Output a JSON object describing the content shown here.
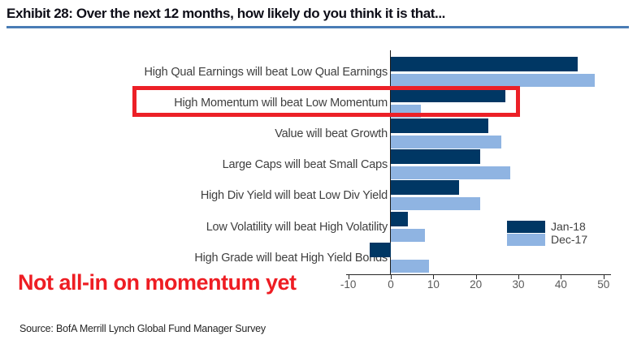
{
  "header": {
    "title": "Exhibit 28: Over the next 12 months, how likely do you think it is that..."
  },
  "chart_data": {
    "type": "bar",
    "orientation": "horizontal",
    "title": "Exhibit 28: Over the next 12 months, how likely do you think it is that...",
    "categories": [
      "High Qual Earnings will beat Low Qual Earnings",
      "High Momentum will beat Low Momentum",
      "Value will beat Growth",
      "Large Caps will beat Small Caps",
      "High Div Yield will beat Low Div Yield",
      "Low Volatility will beat High Volatility",
      "High Grade will beat High Yield Bonds"
    ],
    "series": [
      {
        "name": "Jan-18",
        "color": "#003764",
        "values": [
          44,
          27,
          23,
          21,
          16,
          4,
          -5
        ]
      },
      {
        "name": "Dec-17",
        "color": "#8fb4e2",
        "values": [
          48,
          7,
          26,
          28,
          21,
          8,
          9
        ]
      }
    ],
    "xlim": [
      -10,
      50
    ],
    "xticks": [
      -10,
      0,
      10,
      20,
      30,
      40,
      50
    ],
    "grid": false,
    "legend_position": "right-middle",
    "highlighted_category": "High Momentum will beat Low Momentum"
  },
  "annotation": {
    "text": "Not all-in on momentum yet",
    "color": "#ee1d23"
  },
  "highlight": {
    "box_color": "#ec2027"
  },
  "footer": {
    "source": "Source: BofA Merrill Lynch Global Fund Manager Survey"
  }
}
